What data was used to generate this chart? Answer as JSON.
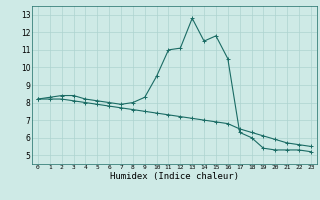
{
  "xlabel": "Humidex (Indice chaleur)",
  "bg_color": "#ceeae6",
  "grid_color": "#aed4d0",
  "line_color": "#1a6b64",
  "curve1_x": [
    0,
    1,
    2,
    3,
    4,
    5,
    6,
    7,
    8,
    9,
    10,
    11,
    12,
    13,
    14,
    15,
    16,
    17,
    18,
    19,
    20,
    21,
    22,
    23
  ],
  "curve1_y": [
    8.2,
    8.3,
    8.4,
    8.4,
    8.2,
    8.1,
    8.0,
    7.9,
    8.0,
    8.3,
    9.5,
    11.0,
    11.1,
    12.8,
    11.5,
    11.8,
    10.5,
    6.3,
    6.0,
    5.4,
    5.3,
    5.3,
    5.3,
    5.2
  ],
  "curve2_x": [
    0,
    1,
    2,
    3,
    4,
    5,
    6,
    7,
    8,
    9,
    10,
    11,
    12,
    13,
    14,
    15,
    16,
    17,
    18,
    19,
    20,
    21,
    22,
    23
  ],
  "curve2_y": [
    8.2,
    8.2,
    8.2,
    8.1,
    8.0,
    7.9,
    7.8,
    7.7,
    7.6,
    7.5,
    7.4,
    7.3,
    7.2,
    7.1,
    7.0,
    6.9,
    6.8,
    6.5,
    6.3,
    6.1,
    5.9,
    5.7,
    5.6,
    5.5
  ],
  "xlim": [
    -0.5,
    23.5
  ],
  "ylim": [
    4.5,
    13.5
  ],
  "yticks": [
    5,
    6,
    7,
    8,
    9,
    10,
    11,
    12,
    13
  ],
  "xticks": [
    0,
    1,
    2,
    3,
    4,
    5,
    6,
    7,
    8,
    9,
    10,
    11,
    12,
    13,
    14,
    15,
    16,
    17,
    18,
    19,
    20,
    21,
    22,
    23
  ]
}
